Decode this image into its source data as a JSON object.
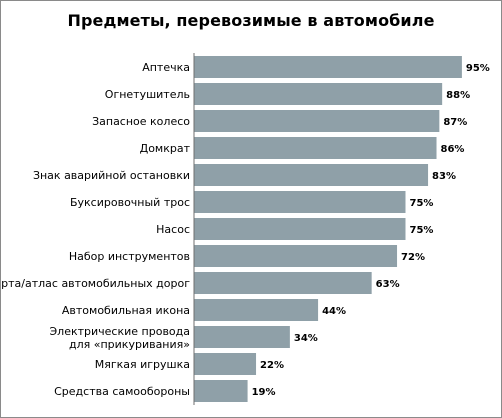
{
  "chart_data": {
    "type": "bar",
    "orientation": "horizontal",
    "title": "Предметы, перевозимые в автомобиле",
    "xlabel": "",
    "ylabel": "",
    "xlim": [
      0,
      100
    ],
    "grid": false,
    "legend": "none",
    "bar_color": "#8fa0a8",
    "value_suffix": "%",
    "categories": [
      "Аптечка",
      "Огнетушитель",
      "Запасное колесо",
      "Домкрат",
      "Знак аварийной остановки",
      "Буксировочный трос",
      "Насос",
      "Набор инструментов",
      "Карта/атлас автомобильных дорог",
      "Автомобильная икона",
      "Электрические провода\nдля «прикуривания»",
      "Мягкая игрушка",
      "Средства самообороны"
    ],
    "values": [
      95,
      88,
      87,
      86,
      83,
      75,
      75,
      72,
      63,
      44,
      34,
      22,
      19
    ],
    "labels": [
      "95%",
      "88%",
      "87%",
      "86%",
      "83%",
      "75%",
      "75%",
      "72%",
      "63%",
      "44%",
      "34%",
      "22%",
      "19%"
    ]
  }
}
